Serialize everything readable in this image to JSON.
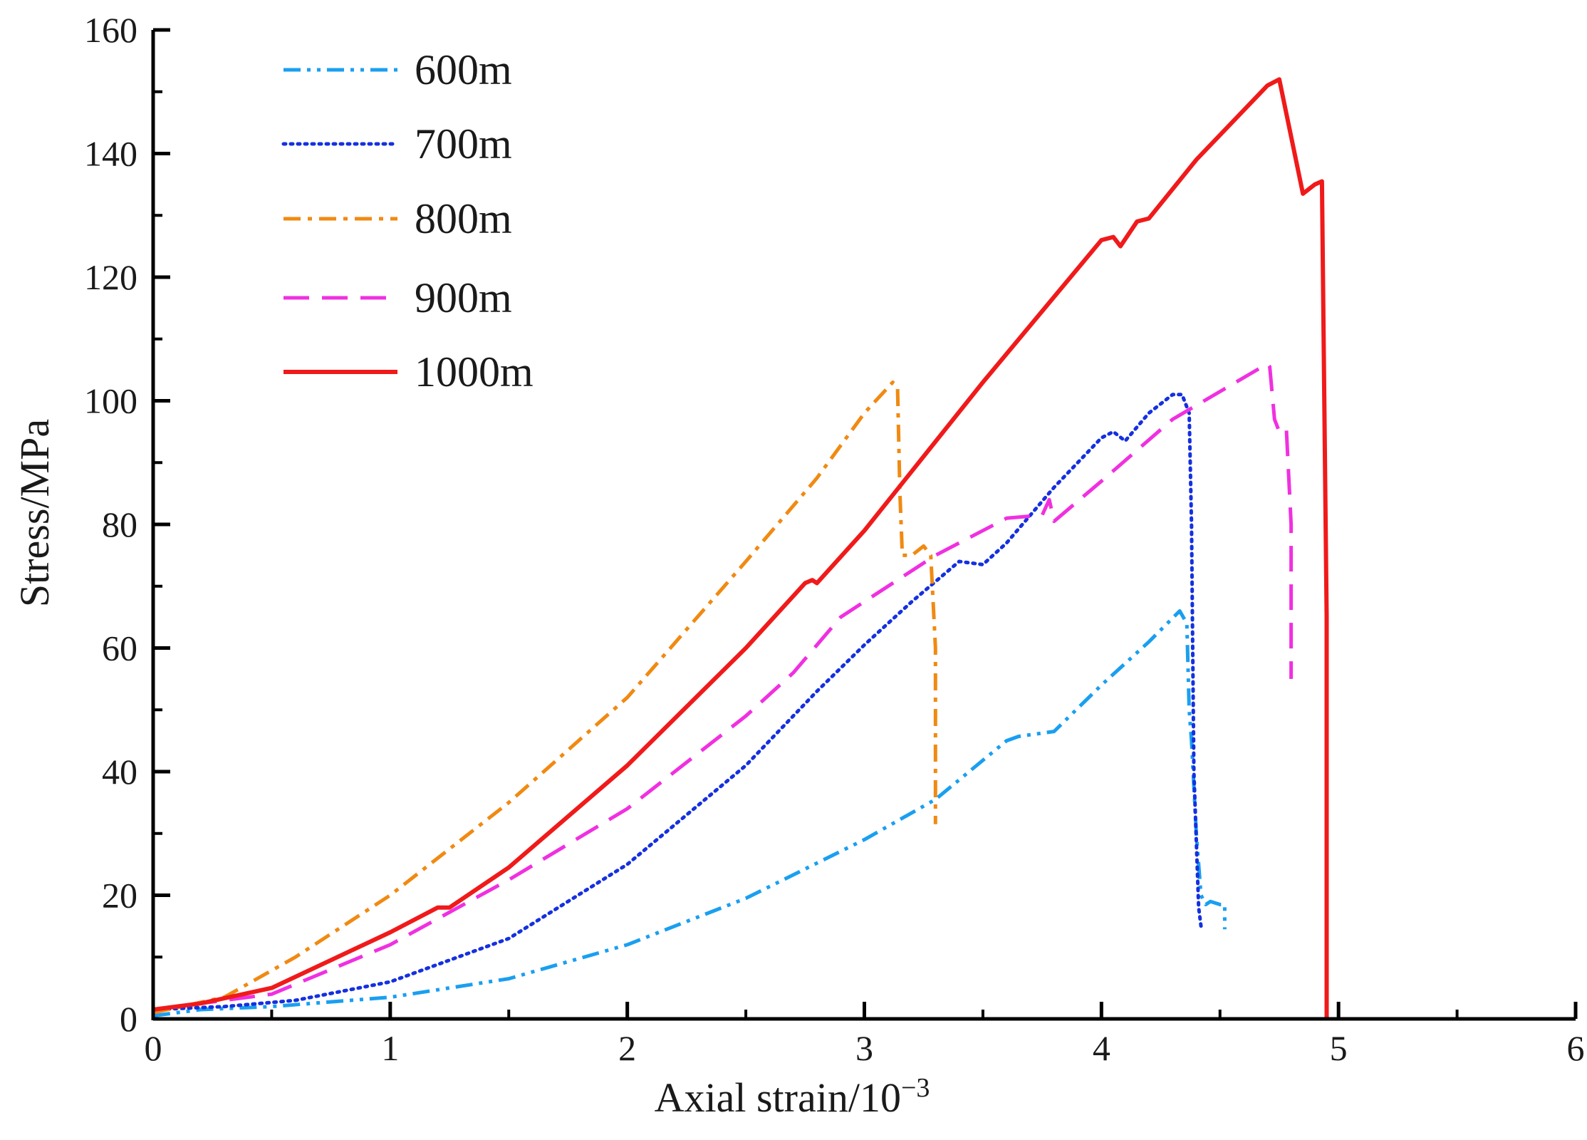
{
  "chart_data": {
    "type": "line",
    "title": "",
    "xlabel": "Axial strain/10",
    "xlabel_exponent": "−3",
    "ylabel": "Stress/MPa",
    "xlim": [
      0,
      6
    ],
    "ylim": [
      0,
      160
    ],
    "xticks": [
      0,
      1,
      2,
      3,
      4,
      5,
      6
    ],
    "yticks": [
      0,
      20,
      40,
      60,
      80,
      100,
      120,
      140,
      160
    ],
    "xtick_labels": [
      "0",
      "1",
      "2",
      "3",
      "4",
      "5",
      "6"
    ],
    "ytick_labels": [
      "0",
      "20",
      "40",
      "60",
      "80",
      "100",
      "120",
      "140",
      "160"
    ],
    "grid": false,
    "legend_position": "top-left",
    "series": [
      {
        "name": "600m",
        "color": "#1a9ff0",
        "style": "dashdotdot",
        "x": [
          0,
          0.2,
          0.5,
          1.0,
          1.5,
          2.0,
          2.5,
          3.0,
          3.3,
          3.6,
          3.65,
          3.8,
          4.0,
          4.2,
          4.33,
          4.36,
          4.37,
          4.38,
          4.4,
          4.42,
          4.44,
          4.46,
          4.5,
          4.52,
          4.52
        ],
        "values": [
          0.5,
          1.5,
          2,
          3.5,
          6.5,
          12,
          19.5,
          29,
          35.5,
          45,
          45.7,
          46.5,
          54,
          61,
          66,
          64,
          50,
          45,
          30,
          20,
          18.5,
          19,
          18.5,
          18.5,
          14.5
        ]
      },
      {
        "name": "700m",
        "color": "#1530e0",
        "style": "dotted",
        "x": [
          0,
          0.3,
          0.6,
          1.0,
          1.5,
          2.0,
          2.5,
          2.8,
          3.0,
          3.2,
          3.4,
          3.5,
          3.6,
          3.8,
          4.0,
          4.05,
          4.1,
          4.2,
          4.3,
          4.34,
          4.37,
          4.38,
          4.39,
          4.41,
          4.42
        ],
        "values": [
          1.5,
          2,
          3,
          6,
          13,
          25,
          41,
          53,
          60.5,
          67.5,
          74,
          73.5,
          77,
          86,
          94,
          95,
          93.5,
          98,
          101,
          101,
          98,
          80,
          40,
          18,
          15
        ]
      },
      {
        "name": "800m",
        "color": "#f08a12",
        "style": "dashdot",
        "x": [
          0,
          0.3,
          0.6,
          1.0,
          1.5,
          2.0,
          2.5,
          2.8,
          3.0,
          3.12,
          3.14,
          3.15,
          3.16,
          3.2,
          3.25,
          3.28,
          3.3,
          3.3
        ],
        "values": [
          1,
          3.5,
          10,
          20,
          35,
          52,
          74,
          87.5,
          98,
          103,
          102,
          85,
          75,
          75,
          76.5,
          75,
          60,
          31.5
        ]
      },
      {
        "name": "900m",
        "color": "#f030e0",
        "style": "dashed",
        "x": [
          0,
          0.5,
          1.0,
          1.5,
          2.0,
          2.5,
          2.7,
          2.9,
          3.0,
          3.3,
          3.6,
          3.75,
          3.78,
          3.8,
          4.0,
          4.3,
          4.5,
          4.7,
          4.71,
          4.73,
          4.75,
          4.78,
          4.8,
          4.8
        ],
        "values": [
          1.5,
          4,
          12,
          22.5,
          34,
          49,
          56,
          65,
          67.5,
          75,
          81,
          81.5,
          84,
          80.5,
          87,
          97,
          101.5,
          106,
          105.5,
          97,
          95,
          95.5,
          80,
          55
        ]
      },
      {
        "name": "1000m",
        "color": "#f01a1a",
        "style": "solid",
        "x": [
          0,
          0.2,
          0.5,
          1.0,
          1.2,
          1.25,
          1.5,
          2.0,
          2.5,
          2.75,
          2.78,
          2.8,
          3.0,
          3.5,
          4.0,
          4.05,
          4.08,
          4.15,
          4.2,
          4.4,
          4.6,
          4.7,
          4.75,
          4.85,
          4.9,
          4.93,
          4.94,
          4.95,
          4.95
        ],
        "values": [
          1.5,
          2.5,
          5,
          14,
          18,
          18,
          24.5,
          41,
          60,
          70.5,
          71,
          70.5,
          79,
          103,
          126,
          126.5,
          125,
          129,
          129.5,
          139,
          147,
          151,
          152,
          133.5,
          135,
          135.5,
          100,
          65,
          0
        ]
      }
    ]
  }
}
